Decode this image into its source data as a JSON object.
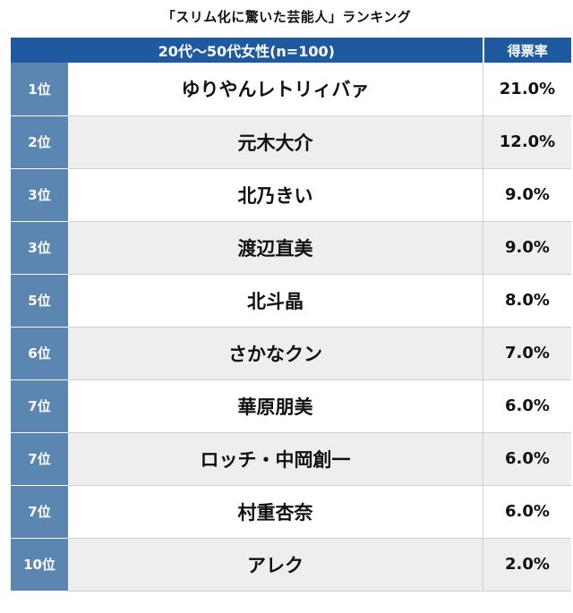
{
  "title": "「スリム化に驚いた芸能人」ランキング",
  "header": {
    "group": "20代〜50代女性(n=100)",
    "rate": "得票率"
  },
  "rows": [
    {
      "rank": "1位",
      "name": "ゆりやんレトリィバァ",
      "rate": "21.0%"
    },
    {
      "rank": "2位",
      "name": "元木大介",
      "rate": "12.0%"
    },
    {
      "rank": "3位",
      "name": "北乃きい",
      "rate": "9.0%"
    },
    {
      "rank": "3位",
      "name": "渡辺直美",
      "rate": "9.0%"
    },
    {
      "rank": "5位",
      "name": "北斗晶",
      "rate": "8.0%"
    },
    {
      "rank": "6位",
      "name": "さかなクン",
      "rate": "7.0%"
    },
    {
      "rank": "7位",
      "name": "華原朋美",
      "rate": "6.0%"
    },
    {
      "rank": "7位",
      "name": "ロッチ・中岡創一",
      "rate": "6.0%"
    },
    {
      "rank": "7位",
      "name": "村重杏奈",
      "rate": "6.0%"
    },
    {
      "rank": "10位",
      "name": "アレク",
      "rate": "2.0%"
    }
  ],
  "colors": {
    "header_bg": "#1f5aa0",
    "rank_bg": "#5c86b2",
    "stripe_bg": "#eeeeee"
  }
}
